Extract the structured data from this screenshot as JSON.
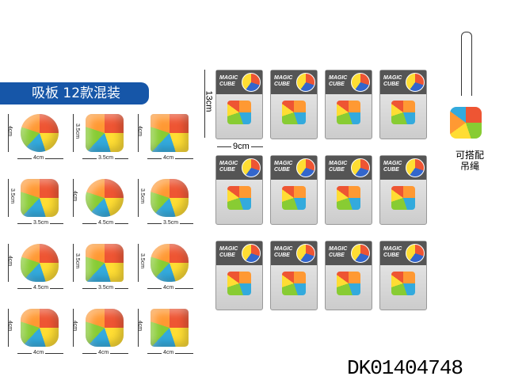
{
  "banner": "吸板 12款混装",
  "variants": [
    {
      "h": "4cm",
      "w": "4cm"
    },
    {
      "h": "3.5cm",
      "w": "3.5cm"
    },
    {
      "h": "4cm",
      "w": "4cm"
    },
    {
      "h": "3.5cm",
      "w": "3.5cm"
    },
    {
      "h": "4cm",
      "w": "4.5cm"
    },
    {
      "h": "3.5cm",
      "w": "3.5cm"
    },
    {
      "h": "4cm",
      "w": "4.5cm"
    },
    {
      "h": "3.5cm",
      "w": "3.5cm"
    },
    {
      "h": "3.5cm",
      "w": "4cm"
    },
    {
      "h": "4cm",
      "w": "4cm"
    },
    {
      "h": "4cm",
      "w": "4cm"
    },
    {
      "h": "4cm",
      "w": "4cm"
    }
  ],
  "package": {
    "title_line1": "MAGIC",
    "title_line2": "CUBE",
    "height": "13cm",
    "width": "9cm"
  },
  "keychain_label": "可搭配吊绳",
  "product_code": "DK01404748"
}
